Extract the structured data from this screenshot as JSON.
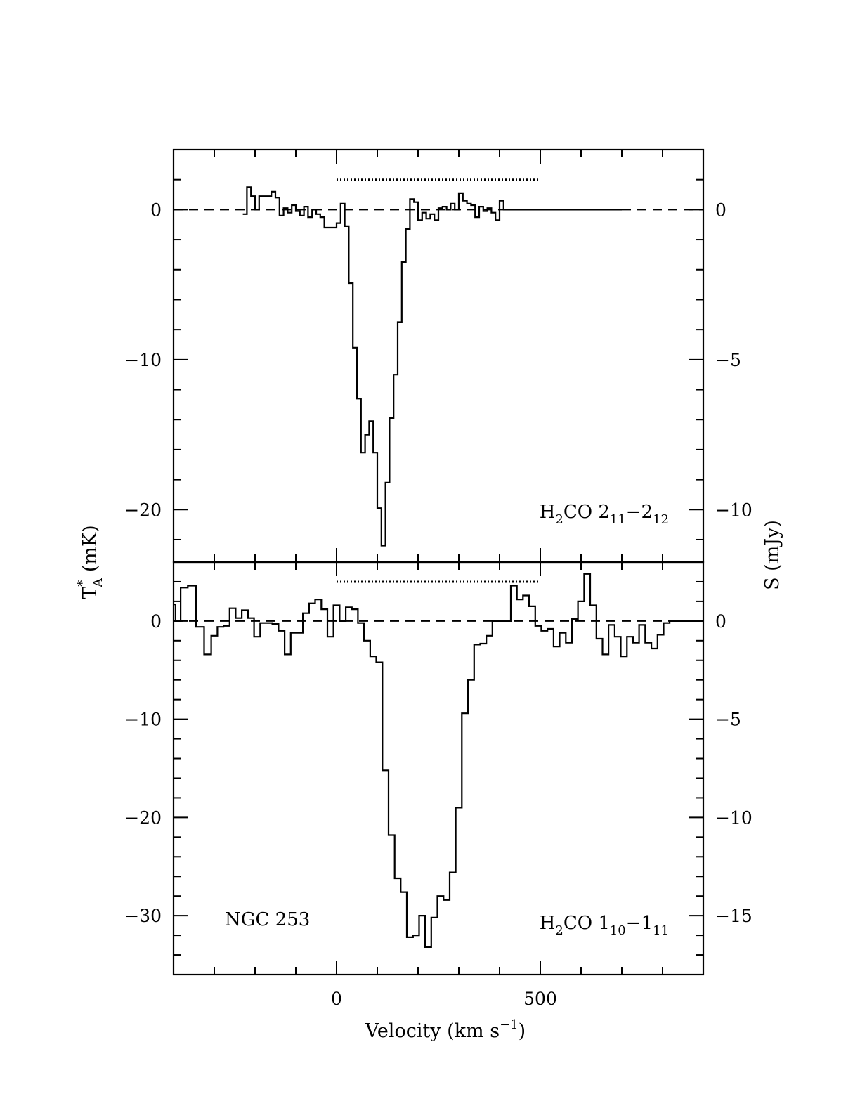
{
  "chart_data": [
    {
      "type": "line",
      "style": "histogram-step",
      "title": "",
      "xlabel_main": "Velocity (km s",
      "xlabel_sup": "−1",
      "xlabel_close": ")",
      "ylabel_left_main": "T",
      "ylabel_left_sup": "*",
      "ylabel_left_sub": "A",
      "ylabel_left_rest": " (mK)",
      "ylabel_right": "S (mJy)",
      "xlim": [
        -400,
        900
      ],
      "ylim": [
        -23.5,
        4
      ],
      "right_axis_scale": 0.5,
      "x_tick_labels": [
        {
          "v": 0,
          "t": "0"
        },
        {
          "v": 500,
          "t": "500"
        }
      ],
      "y_tick_labels_left": [
        {
          "v": 0,
          "t": "0"
        },
        {
          "v": -10,
          "t": "−10"
        },
        {
          "v": -20,
          "t": "−20"
        }
      ],
      "y_tick_labels_right": [
        {
          "v": 0,
          "t": "0"
        },
        {
          "v": -10,
          "t": "−5"
        },
        {
          "v": -20,
          "t": "−10"
        }
      ],
      "annotation": {
        "molecule_pre": "H",
        "molecule_sub": "2",
        "molecule_post": "CO 2",
        "lo_sub": "11",
        "mid": "−2",
        "hi_sub": "12"
      },
      "velocity_range_marker": [
        0,
        500
      ],
      "marker_level": 2,
      "zero_baseline": true,
      "series": [
        {
          "x": [
            -225,
            -215,
            -205,
            -195,
            -185,
            -175,
            -165,
            -155,
            -145,
            -135,
            -125,
            -115,
            -105,
            -95,
            -85,
            -75,
            -65,
            -55,
            -45,
            -35,
            -25,
            -15,
            -5,
            5,
            15,
            25,
            35,
            45,
            55,
            65,
            75,
            85,
            95,
            105,
            115,
            125,
            135,
            145,
            155,
            165,
            175,
            185,
            195,
            205,
            215,
            225,
            235,
            245,
            255,
            265,
            275,
            285,
            295,
            305,
            315,
            325,
            335,
            345,
            355,
            365,
            375,
            385,
            395,
            405,
            415,
            425,
            435,
            445,
            455,
            465,
            475,
            485,
            495,
            505,
            515,
            525,
            535,
            545,
            555,
            565,
            575,
            585,
            595,
            605,
            615,
            625,
            635,
            645,
            655,
            665,
            675,
            685,
            695
          ],
          "y": [
            -0.3,
            1.5,
            0.9,
            0.0,
            0.9,
            0.9,
            0.9,
            1.2,
            0.8,
            -0.4,
            0.1,
            -0.2,
            0.3,
            -0.1,
            -0.4,
            0.2,
            -0.5,
            0.0,
            -0.3,
            -0.5,
            -1.2,
            -1.2,
            -1.2,
            -0.9,
            0.4,
            -1.1,
            -4.9,
            -9.2,
            -12.6,
            -16.2,
            -15.0,
            -14.1,
            -16.2,
            -19.9,
            -22.4,
            -18.2,
            -13.9,
            -11.0,
            -7.5,
            -3.5,
            -1.3,
            0.7,
            0.5,
            -0.7,
            -0.2,
            -0.6,
            -0.3,
            -0.7,
            0.1,
            0.2,
            0.0,
            0.4,
            0.0,
            1.1,
            0.6,
            0.4,
            0.3,
            -0.5,
            0.2,
            -0.1,
            0.1,
            -0.2,
            -0.7,
            0.6,
            0.0,
            0.0,
            0.0,
            0.0,
            0.0,
            0.0,
            0.0,
            0.0,
            0.0,
            0.0,
            0.0,
            0.0,
            0.0,
            0.0,
            0.0,
            0.0,
            0.0,
            0.0,
            0.0,
            0.0,
            0.0,
            0.0,
            0.0,
            0.0,
            0.0,
            0.0,
            0.0,
            0.0,
            0.0
          ]
        }
      ]
    },
    {
      "type": "line",
      "style": "histogram-step",
      "title": "",
      "xlabel": "",
      "xlim": [
        -400,
        900
      ],
      "ylim": [
        -36,
        6
      ],
      "right_axis_scale": 0.5,
      "x_tick_labels": [
        {
          "v": 0,
          "t": "0"
        },
        {
          "v": 500,
          "t": "500"
        }
      ],
      "y_tick_labels_left": [
        {
          "v": 0,
          "t": "0"
        },
        {
          "v": -10,
          "t": "−10"
        },
        {
          "v": -20,
          "t": "−20"
        },
        {
          "v": -30,
          "t": "−30"
        }
      ],
      "y_tick_labels_right": [
        {
          "v": 0,
          "t": "0"
        },
        {
          "v": -10,
          "t": "−5"
        },
        {
          "v": -20,
          "t": "−10"
        },
        {
          "v": -30,
          "t": "−15"
        }
      ],
      "annotation": {
        "molecule_pre": "H",
        "molecule_sub": "2",
        "molecule_post": "CO 1",
        "lo_sub": "10",
        "mid": "−1",
        "hi_sub": "11"
      },
      "source_label": "NGC 253",
      "velocity_range_marker": [
        0,
        500
      ],
      "marker_level": 4,
      "zero_baseline": true,
      "series": [
        {
          "x": [
            -400,
            -390,
            -375,
            -355,
            -335,
            -315,
            -300,
            -285,
            -270,
            -255,
            -240,
            -225,
            -210,
            -195,
            -180,
            -165,
            -150,
            -135,
            -120,
            -105,
            -90,
            -75,
            -60,
            -45,
            -30,
            -15,
            0,
            15,
            30,
            45,
            60,
            75,
            90,
            105,
            120,
            135,
            150,
            165,
            180,
            195,
            210,
            225,
            240,
            255,
            270,
            285,
            300,
            315,
            330,
            345,
            360,
            375,
            390,
            405,
            420,
            435,
            450,
            465,
            480,
            495,
            510,
            525,
            540,
            555,
            570,
            585,
            600,
            615,
            630,
            645,
            660,
            675,
            690,
            705,
            720,
            735,
            750,
            765,
            780,
            795,
            810,
            825,
            840,
            855,
            870,
            885
          ],
          "y": [
            1.7,
            0.0,
            3.4,
            3.6,
            -0.6,
            -3.4,
            -1.5,
            -0.6,
            -0.5,
            1.3,
            0.3,
            1.1,
            0.3,
            -1.6,
            -0.2,
            -0.2,
            -0.3,
            -1.0,
            -3.4,
            -1.2,
            -1.2,
            0.8,
            1.8,
            2.2,
            1.2,
            -1.6,
            1.6,
            0.0,
            1.4,
            1.2,
            -0.2,
            -2.0,
            -3.6,
            -4.2,
            -15.2,
            -21.8,
            -26.2,
            -27.6,
            -32.2,
            -32.0,
            -30.0,
            -33.2,
            -30.2,
            -28.0,
            -28.4,
            -25.6,
            -19.0,
            -9.4,
            -6.0,
            -2.4,
            -2.3,
            -1.5,
            0.0,
            0.0,
            0.0,
            3.6,
            2.2,
            2.6,
            1.5,
            -0.5,
            -1.0,
            -0.8,
            -2.6,
            -1.2,
            -2.2,
            0.2,
            2.0,
            4.8,
            1.6,
            -1.8,
            -3.4,
            -0.4,
            -1.6,
            -3.6,
            -1.6,
            -2.2,
            -0.4,
            -2.2,
            -2.8,
            -1.4,
            -0.2,
            0.0,
            0.0,
            0.0,
            0.0,
            0.0
          ]
        }
      ]
    }
  ]
}
